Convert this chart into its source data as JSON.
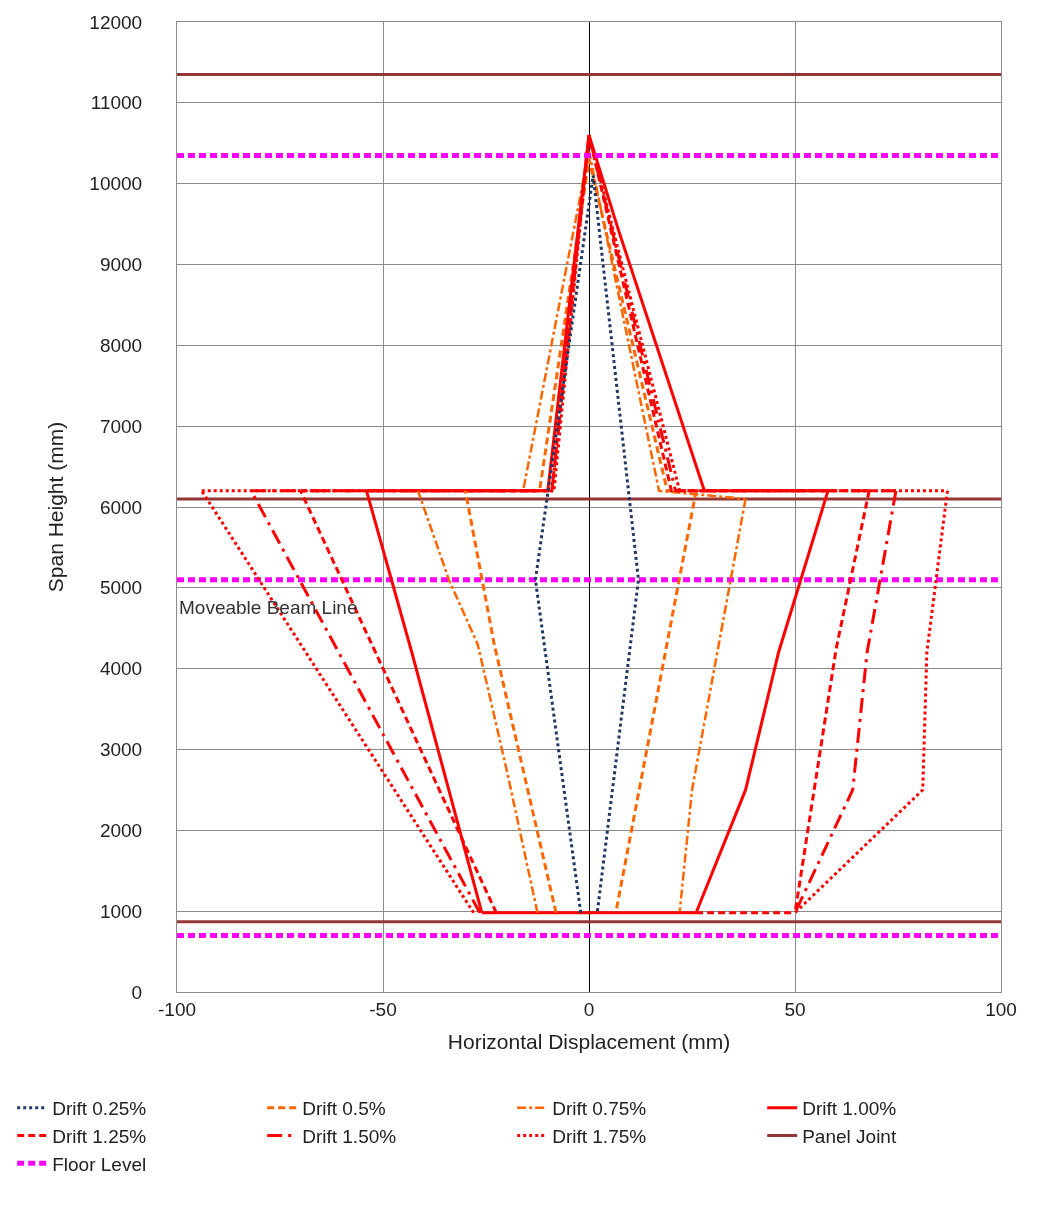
{
  "chart_data": {
    "type": "line",
    "xlabel": "Horizontal Displacement (mm)",
    "ylabel": "Span Height (mm)",
    "xlim": [
      -100,
      100
    ],
    "xticks": [
      -100,
      -50,
      0,
      50,
      100
    ],
    "ylim": [
      0,
      12000
    ],
    "yticks": [
      0,
      1000,
      2000,
      3000,
      4000,
      5000,
      6000,
      7000,
      8000,
      9000,
      10000,
      11000,
      12000
    ],
    "grid": true,
    "legend": "bottom",
    "marker": "none",
    "annotations": [
      "Moveable Beam Line"
    ],
    "ref_lines": [
      {
        "axis": "y",
        "value": 10350,
        "label": "Floor Level",
        "color": "#ff00ff",
        "line_style": "dashed"
      },
      {
        "axis": "y",
        "value": 5100,
        "color": "#ff00ff",
        "line_style": "dashed"
      },
      {
        "axis": "y",
        "value": 700,
        "color": "#ff00ff",
        "line_style": "dashed"
      },
      {
        "axis": "y",
        "value": 11350,
        "label": "Panel Joint",
        "color": "#943634",
        "line_style": "solid"
      },
      {
        "axis": "y",
        "value": 6100,
        "color": "#943634",
        "line_style": "solid"
      },
      {
        "axis": "y",
        "value": 870,
        "color": "#943634",
        "line_style": "solid"
      }
    ],
    "series": [
      {
        "name": "Drift 0.25%",
        "color": "#1f3864",
        "line_style": "dotted",
        "x": [
          -2,
          -13,
          1,
          12,
          2
        ],
        "values": [
          980,
          5100,
          10100,
          5100,
          980
        ]
      },
      {
        "name": "Drift 0.5%",
        "color": "#ff6600",
        "line_style": "dashed",
        "x": [
          -8,
          -23,
          -30
        ],
        "values": [
          980,
          4300,
          6200
        ]
      },
      {
        "color": "#ff6600",
        "line_style": "dashed",
        "x": [
          -30,
          -12,
          0,
          19,
          26
        ],
        "values": [
          6200,
          6200,
          10300,
          6200,
          6200
        ]
      },
      {
        "color": "#ff6600",
        "line_style": "dashed",
        "x": [
          26,
          6.5
        ],
        "values": [
          6200,
          980
        ]
      },
      {
        "name": "Drift 0.75%",
        "color": "#ff6600",
        "line_style": "dashdot",
        "x": [
          -12.5,
          -20,
          -27,
          -34,
          -41.5
        ],
        "values": [
          980,
          2750,
          4300,
          5100,
          6200
        ]
      },
      {
        "color": "#ff6600",
        "line_style": "dashdot",
        "x": [
          -41.5,
          -16,
          0,
          17,
          38
        ],
        "values": [
          6200,
          6200,
          10400,
          6200,
          6100
        ]
      },
      {
        "color": "#ff6600",
        "line_style": "dashdot",
        "x": [
          38,
          25,
          22
        ],
        "values": [
          6100,
          2500,
          980
        ]
      },
      {
        "name": "Drift 1.00%",
        "color": "#ff0000",
        "line_style": "solid",
        "x": [
          -26,
          -43,
          -54
        ],
        "values": [
          980,
          4200,
          6200
        ]
      },
      {
        "color": "#ff0000",
        "line_style": "solid",
        "x": [
          -54,
          -10,
          0,
          7,
          28,
          58
        ],
        "values": [
          6200,
          6200,
          10600,
          9450,
          6200,
          6200
        ]
      },
      {
        "color": "#ff0000",
        "line_style": "solid",
        "x": [
          58,
          46,
          38,
          26
        ],
        "values": [
          6200,
          4200,
          2500,
          980
        ]
      },
      {
        "color": "#ff0000",
        "line_style": "solid",
        "x": [
          -26,
          26
        ],
        "values": [
          980,
          980
        ]
      },
      {
        "name": "Drift 1.25%",
        "color": "#ff0000",
        "line_style": "dashed",
        "x": [
          -22.5,
          -70
        ],
        "values": [
          980,
          6200
        ]
      },
      {
        "color": "#ff0000",
        "line_style": "dashed",
        "x": [
          -70,
          -9,
          0,
          20,
          68
        ],
        "values": [
          6200,
          6200,
          10600,
          6200,
          6200
        ]
      },
      {
        "color": "#ff0000",
        "line_style": "dashed",
        "x": [
          68,
          60,
          50
        ],
        "values": [
          6200,
          4250,
          980
        ]
      },
      {
        "color": "#ff0000",
        "line_style": "dashed",
        "x": [
          26,
          50
        ],
        "values": [
          980,
          980
        ]
      },
      {
        "name": "Drift 1.50%",
        "color": "#ff0000",
        "line_style": "longdashdot",
        "x": [
          -26.5,
          -82
        ],
        "values": [
          980,
          6200
        ]
      },
      {
        "color": "#ff0000",
        "line_style": "longdashdot",
        "x": [
          -82,
          -9,
          0,
          21,
          74.5
        ],
        "values": [
          6200,
          6200,
          10600,
          6200,
          6200
        ]
      },
      {
        "color": "#ff0000",
        "line_style": "longdashdot",
        "x": [
          74.5,
          67.5,
          64,
          50
        ],
        "values": [
          6200,
          4200,
          2500,
          980
        ]
      },
      {
        "name": "Drift 1.75%",
        "color": "#ff0000",
        "line_style": "dotted",
        "x": [
          -28,
          -94
        ],
        "values": [
          980,
          6200
        ]
      },
      {
        "color": "#ff0000",
        "line_style": "dotted",
        "x": [
          -94,
          -8.5,
          0,
          22,
          87
        ],
        "values": [
          6200,
          6200,
          10600,
          6200,
          6200
        ]
      },
      {
        "color": "#ff0000",
        "line_style": "dotted",
        "x": [
          87,
          82,
          81,
          50
        ],
        "values": [
          6200,
          4200,
          2500,
          980
        ]
      }
    ]
  }
}
